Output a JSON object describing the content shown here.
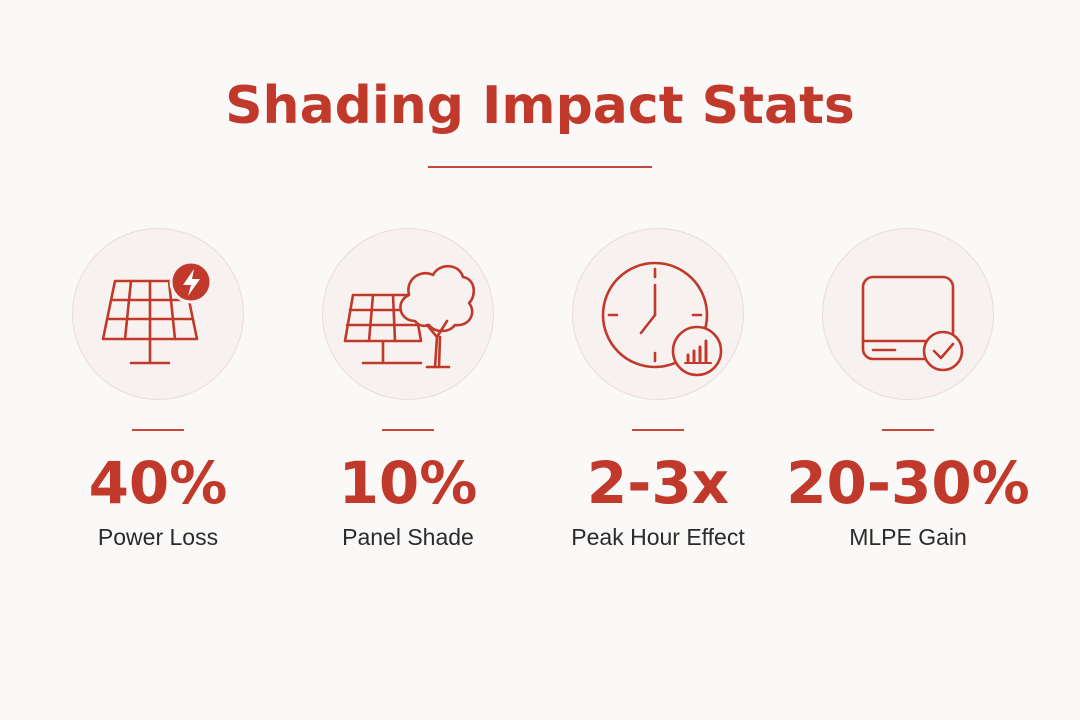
{
  "title": "Shading Impact Stats",
  "colors": {
    "accent": "#c0392b",
    "circle_bg": "#f7f2ef",
    "label": "#2b2b2b",
    "background": "#faf9f8"
  },
  "stats": [
    {
      "value": "40%",
      "label": "Power Loss",
      "icon": "solar-panel-lightning-icon"
    },
    {
      "value": "10%",
      "label": "Panel Shade",
      "icon": "solar-panel-tree-icon"
    },
    {
      "value": "2-3x",
      "label": "Peak Hour Effect",
      "icon": "clock-chart-icon"
    },
    {
      "value": "20-30%",
      "label": "MLPE Gain",
      "icon": "device-checkmark-icon"
    }
  ]
}
